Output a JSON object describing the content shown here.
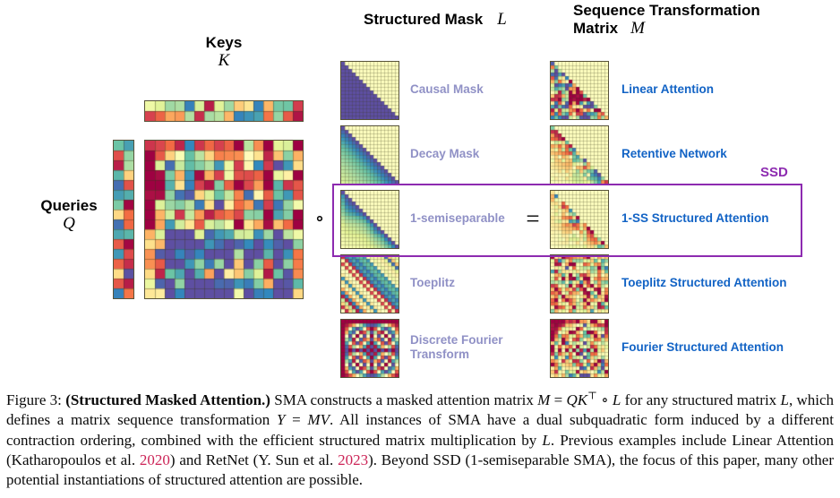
{
  "figure": {
    "keys_label": "Keys",
    "keys_var": "K",
    "queries_label": "Queries",
    "queries_var": "Q",
    "mask_header": "Structured Mask",
    "mask_header_var": "L",
    "transform_header_line1": "Sequence Transformation",
    "transform_header_line2": "Matrix",
    "transform_header_var": "M",
    "compose_operator": "∘",
    "equals_operator": "=",
    "ssd_label": "SSD",
    "rows": [
      {
        "mask_label": "Causal Mask",
        "mask_type": "causal",
        "result_label": "Linear Attention",
        "result_type": "causal_result"
      },
      {
        "mask_label": "Decay Mask",
        "mask_type": "decay",
        "result_label": "Retentive Network",
        "result_type": "decay_result"
      },
      {
        "mask_label": "1-semiseparable",
        "mask_type": "semiseparable",
        "result_label": "1-SS Structured Attention",
        "result_type": "semiseparable_result"
      },
      {
        "mask_label": "Toeplitz",
        "mask_type": "toeplitz",
        "result_label": "Toeplitz Structured Attention",
        "result_type": "toeplitz_result"
      },
      {
        "mask_label": "Discrete Fourier Transform",
        "mask_type": "dft",
        "result_label": "Fourier Structured Attention",
        "result_type": "dft_result"
      }
    ],
    "colors": {
      "mask_label_color": "#9091c6",
      "result_label_color": "#1263c5",
      "ssd_color": "#8d2bb0",
      "citation_color": "#cc2457"
    },
    "matrices": {
      "keys": {
        "type": "random",
        "rows": 2,
        "cols": 16,
        "seed": 11
      },
      "queries": {
        "type": "random",
        "rows": 16,
        "cols": 2,
        "seed": 5
      },
      "qk": {
        "type": "qk",
        "rows": 16,
        "cols": 16,
        "seed": 23
      }
    }
  },
  "caption": {
    "segments": [
      {
        "t": "Figure 3: ",
        "s": ""
      },
      {
        "t": "(Structured Masked Attention.)",
        "s": "b"
      },
      {
        "t": " SMA constructs a masked attention matrix ",
        "s": ""
      },
      {
        "t": "M",
        "s": "i"
      },
      {
        "t": " = ",
        "s": ""
      },
      {
        "t": "QK",
        "s": "i"
      },
      {
        "t": "⊤",
        "s": "sup"
      },
      {
        "t": " ∘ ",
        "s": ""
      },
      {
        "t": "L",
        "s": "i"
      },
      {
        "t": " for any structured matrix ",
        "s": ""
      },
      {
        "t": "L",
        "s": "i"
      },
      {
        "t": ", which defines a matrix sequence transformation ",
        "s": ""
      },
      {
        "t": "Y",
        "s": "i"
      },
      {
        "t": " = ",
        "s": ""
      },
      {
        "t": "MV",
        "s": "i"
      },
      {
        "t": ". All instances of SMA have a dual subquadratic form induced by a different contraction ordering, combined with the efficient structured matrix multiplication by ",
        "s": ""
      },
      {
        "t": "L",
        "s": "i"
      },
      {
        "t": ". Previous examples include Linear Attention (Katharopoulos et al. ",
        "s": ""
      },
      {
        "t": "2020",
        "s": "cite"
      },
      {
        "t": ") and RetNet (Y. Sun et al. ",
        "s": ""
      },
      {
        "t": "2023",
        "s": "cite"
      },
      {
        "t": "). Beyond SSD (1-semiseparable SMA), the focus of this paper, many other potential instantiations of structured attention are possible.",
        "s": ""
      }
    ]
  }
}
